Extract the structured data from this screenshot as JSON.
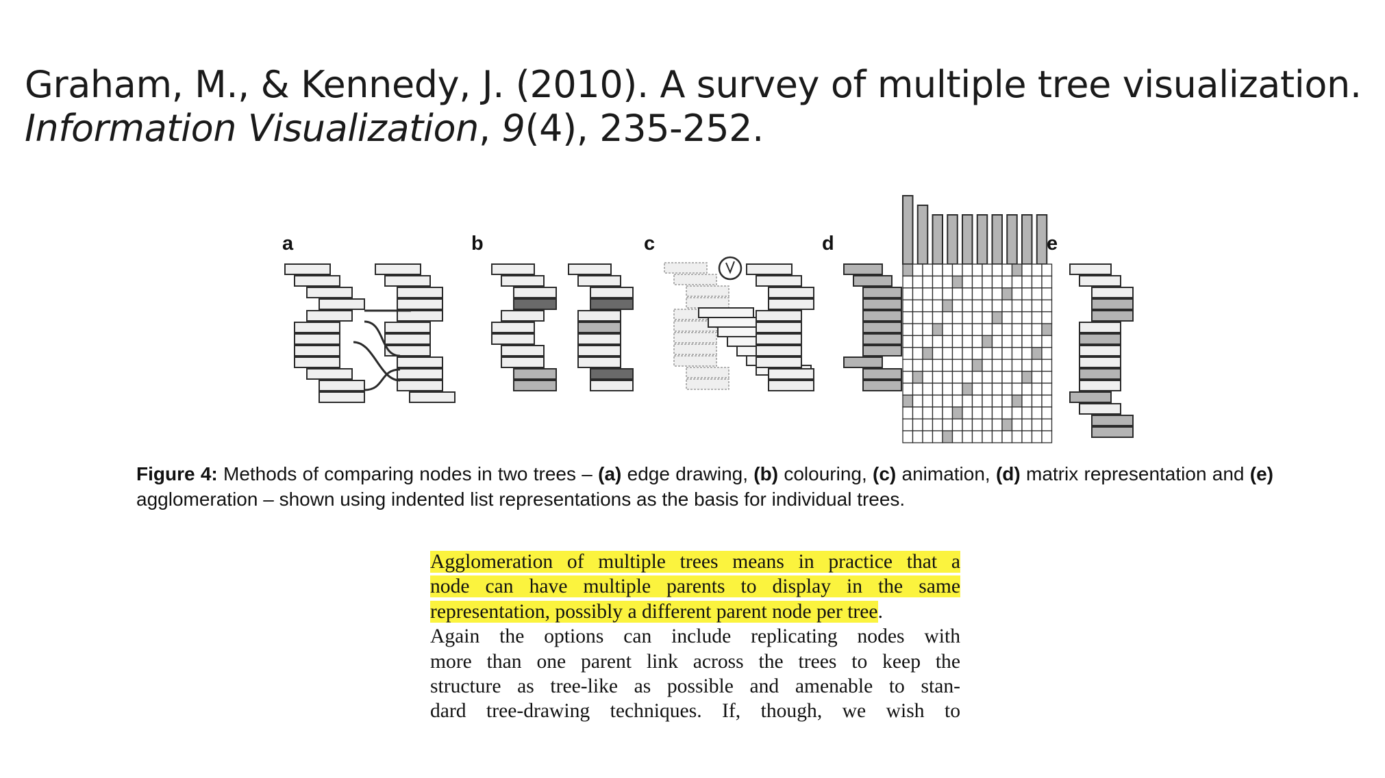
{
  "citation": {
    "authors_year_title": "Graham, M., & Kennedy, J. (2010). A survey of multiple tree visualization.",
    "journal": "Information Visualization",
    "sep1": ", ",
    "volume": "9",
    "issue_pages": "(4), 235-252."
  },
  "figure": {
    "panel_labels": [
      "a",
      "b",
      "c",
      "d",
      "e"
    ],
    "caption": {
      "figure_label": "Figure 4:",
      "t1": " Methods of comparing nodes in two trees – ",
      "a": "(a)",
      "t2": " edge drawing, ",
      "b": "(b)",
      "t3": " colouring, ",
      "c": "(c)",
      "t4": " animation, ",
      "d": "(d)",
      "t5": " matrix representation and ",
      "e": "(e)",
      "t6": " agglomeration – shown using indented list representations as the basis for individual trees."
    },
    "colors": {
      "light": "#efefef",
      "mid": "#b4b4b4",
      "dark": "#6a6a6a",
      "stroke": "#2a2a2a"
    }
  },
  "excerpt": {
    "highlight_color": "#fbf33e",
    "highlighted_lines": [
      "Agglomeration of multiple trees means in practice that a",
      "node can have multiple parents to display in the same",
      "representation, possibly a different parent node per tree"
    ],
    "highlight_end_punct": ".",
    "lines": [
      "Again the options can include replicating nodes with",
      "more than one parent link across the trees to keep the",
      "structure as tree-like as possible and amenable to stan-",
      "dard tree-drawing techniques. If, though, we wish to"
    ]
  }
}
